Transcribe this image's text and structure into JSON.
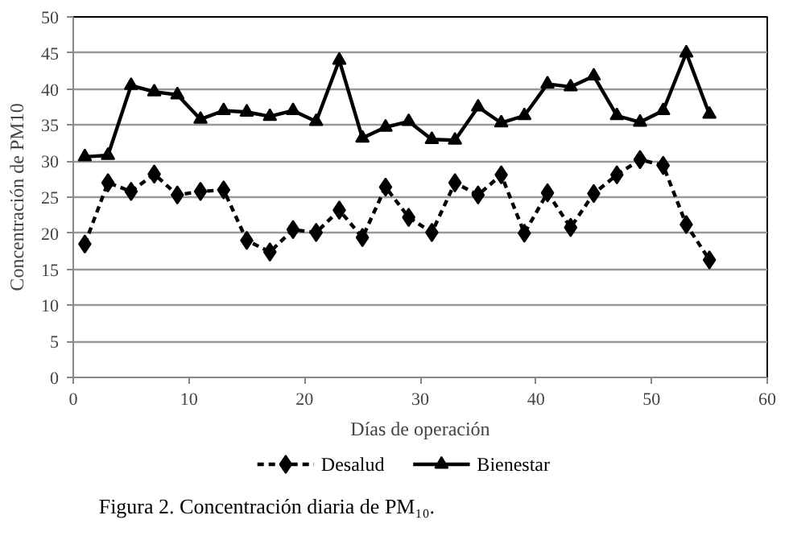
{
  "chart_data": {
    "type": "line",
    "xlabel": "Días de operación",
    "ylabel": "Concentración de PM10",
    "annotations": [
      "Figura 2. Concentración diaria de PM₁₀."
    ],
    "x": [
      1,
      3,
      5,
      7,
      9,
      11,
      13,
      15,
      17,
      19,
      21,
      23,
      25,
      27,
      29,
      31,
      33,
      35,
      37,
      39,
      41,
      43,
      45,
      47,
      49,
      51,
      53,
      55
    ],
    "series": [
      {
        "name": "Desalud",
        "color": "#000000",
        "marker": "diamond",
        "line_style": "dashed",
        "values": [
          18.5,
          27,
          25.8,
          28.2,
          25.3,
          25.8,
          26,
          19,
          17.4,
          20.5,
          20.1,
          23.2,
          19.4,
          26.4,
          22.2,
          20.1,
          27,
          25.3,
          28.1,
          20,
          25.6,
          20.8,
          25.5,
          28.1,
          30.2,
          29.4,
          21.2,
          16.3
        ]
      },
      {
        "name": "Bienestar",
        "color": "#000000",
        "marker": "triangle",
        "line_style": "solid",
        "values": [
          30.6,
          30.8,
          40.5,
          39.6,
          39.2,
          35.8,
          37,
          36.8,
          36.2,
          37,
          35.5,
          44,
          33.2,
          34.7,
          35.5,
          33,
          32.9,
          37.5,
          35.3,
          36.3,
          40.7,
          40.3,
          41.8,
          36.3,
          35.4,
          37,
          45,
          36.5
        ]
      }
    ],
    "xlim": [
      0,
      60
    ],
    "xticks": [
      0,
      10,
      20,
      30,
      40,
      50,
      60
    ],
    "ylim": [
      0,
      50
    ],
    "yticks": [
      0,
      5,
      10,
      15,
      20,
      25,
      30,
      35,
      40,
      45,
      50
    ],
    "grid": "y",
    "legend": "bottom"
  }
}
